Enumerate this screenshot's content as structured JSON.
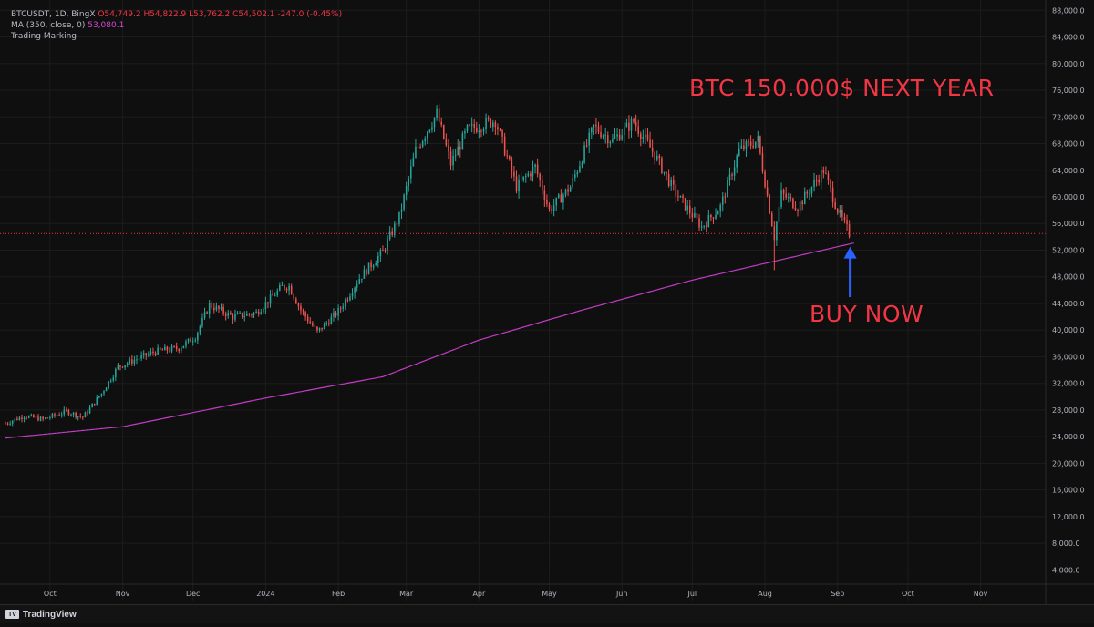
{
  "legend": {
    "symbol_line": "BTCUSDT, 1D, BingX",
    "open": "O54,749.2",
    "high": "H54,822.9",
    "low": "L53,762.2",
    "close": "C54,502.1",
    "change": "-247.0 (-0.45%)",
    "ma_label": "MA (350, close, 0)",
    "ma_value": "53,080.1",
    "indicator2": "Trading Marking"
  },
  "annotations": {
    "title": "BTC 150.000$ NEXT YEAR",
    "buy": "BUY NOW"
  },
  "footer": {
    "brand": "TradingView"
  },
  "colors": {
    "background": "#0f0f0f",
    "up": "#26a69a",
    "down": "#ef5350",
    "ma": "#c23cc4",
    "annotation": "#f23645",
    "arrow": "#2962ff",
    "price_tag": "#f23645"
  },
  "chart_data": {
    "type": "candlestick",
    "symbol": "BTCUSDT",
    "interval": "1D",
    "exchange": "BingX",
    "ylim": [
      2000,
      89000
    ],
    "y_ticks": [
      4000,
      8000,
      12000,
      16000,
      20000,
      24000,
      28000,
      32000,
      36000,
      40000,
      44000,
      48000,
      52000,
      56000,
      60000,
      64000,
      68000,
      72000,
      76000,
      80000,
      84000,
      88000
    ],
    "y_tick_labels": [
      "4,000.0",
      "8,000.0",
      "12,000.0",
      "16,000.0",
      "20,000.0",
      "24,000.0",
      "28,000.0",
      "32,000.0",
      "36,000.0",
      "40,000.0",
      "44,000.0",
      "48,000.0",
      "52,000.0",
      "56,000.0",
      "60,000.0",
      "64,000.0",
      "68,000.0",
      "72,000.0",
      "76,000.0",
      "80,000.0",
      "84,000.0",
      "88,000.0"
    ],
    "x_ticks": [
      {
        "label": "Oct",
        "date": "2023-10-01"
      },
      {
        "label": "Nov",
        "date": "2023-11-01"
      },
      {
        "label": "Dec",
        "date": "2023-12-01"
      },
      {
        "label": "2024",
        "date": "2024-01-01"
      },
      {
        "label": "Feb",
        "date": "2024-02-01"
      },
      {
        "label": "Mar",
        "date": "2024-03-01"
      },
      {
        "label": "Apr",
        "date": "2024-04-01"
      },
      {
        "label": "May",
        "date": "2024-05-01"
      },
      {
        "label": "Jun",
        "date": "2024-06-01"
      },
      {
        "label": "Jul",
        "date": "2024-07-01"
      },
      {
        "label": "Aug",
        "date": "2024-08-01"
      },
      {
        "label": "Sep",
        "date": "2024-09-01"
      },
      {
        "label": "Oct",
        "date": "2024-10-01"
      },
      {
        "label": "Nov",
        "date": "2024-11-01"
      }
    ],
    "x_range": [
      "2023-09-12",
      "2024-11-28"
    ],
    "price_keypoints": [
      [
        "2023-09-12",
        26000
      ],
      [
        "2023-09-20",
        27100
      ],
      [
        "2023-09-28",
        26600
      ],
      [
        "2023-10-08",
        27800
      ],
      [
        "2023-10-15",
        26900
      ],
      [
        "2023-10-23",
        30500
      ],
      [
        "2023-10-30",
        34500
      ],
      [
        "2023-11-15",
        36800
      ],
      [
        "2023-11-25",
        37300
      ],
      [
        "2023-12-02",
        39000
      ],
      [
        "2023-12-08",
        43800
      ],
      [
        "2023-12-18",
        42000
      ],
      [
        "2023-12-28",
        42600
      ],
      [
        "2024-01-08",
        46500
      ],
      [
        "2024-01-11",
        46600
      ],
      [
        "2024-01-16",
        43000
      ],
      [
        "2024-01-23",
        39700
      ],
      [
        "2024-02-01",
        42800
      ],
      [
        "2024-02-10",
        47800
      ],
      [
        "2024-02-20",
        51800
      ],
      [
        "2024-02-27",
        57000
      ],
      [
        "2024-03-05",
        67000
      ],
      [
        "2024-03-14",
        72500
      ],
      [
        "2024-03-20",
        65000
      ],
      [
        "2024-03-27",
        70000
      ],
      [
        "2024-04-08",
        71500
      ],
      [
        "2024-04-17",
        61500
      ],
      [
        "2024-04-25",
        64500
      ],
      [
        "2024-05-01",
        58000
      ],
      [
        "2024-05-10",
        61500
      ],
      [
        "2024-05-20",
        70500
      ],
      [
        "2024-05-28",
        68500
      ],
      [
        "2024-06-06",
        71300
      ],
      [
        "2024-06-15",
        66300
      ],
      [
        "2024-06-24",
        60500
      ],
      [
        "2024-07-05",
        55500
      ],
      [
        "2024-07-13",
        58500
      ],
      [
        "2024-07-21",
        67000
      ],
      [
        "2024-07-29",
        68500
      ],
      [
        "2024-08-05",
        54000
      ],
      [
        "2024-08-08",
        60500
      ],
      [
        "2024-08-15",
        58500
      ],
      [
        "2024-08-26",
        64000
      ],
      [
        "2024-09-01",
        58000
      ],
      [
        "2024-09-06",
        54500
      ]
    ],
    "wick_extremes": [
      {
        "date": "2024-03-14",
        "high": 73800
      },
      {
        "date": "2024-08-05",
        "low": 49000
      }
    ],
    "ma": {
      "name": "MA (350, close, 0)",
      "keypoints": [
        [
          "2023-09-12",
          23800
        ],
        [
          "2023-11-01",
          25500
        ],
        [
          "2024-01-01",
          29800
        ],
        [
          "2024-02-20",
          33000
        ],
        [
          "2024-04-01",
          38500
        ],
        [
          "2024-05-15",
          43000
        ],
        [
          "2024-07-01",
          47500
        ],
        [
          "2024-09-08",
          53080
        ]
      ]
    },
    "last_price": 54502.1,
    "last_price_label": "54,502.1",
    "grid": true,
    "legend_position": "top-left"
  }
}
